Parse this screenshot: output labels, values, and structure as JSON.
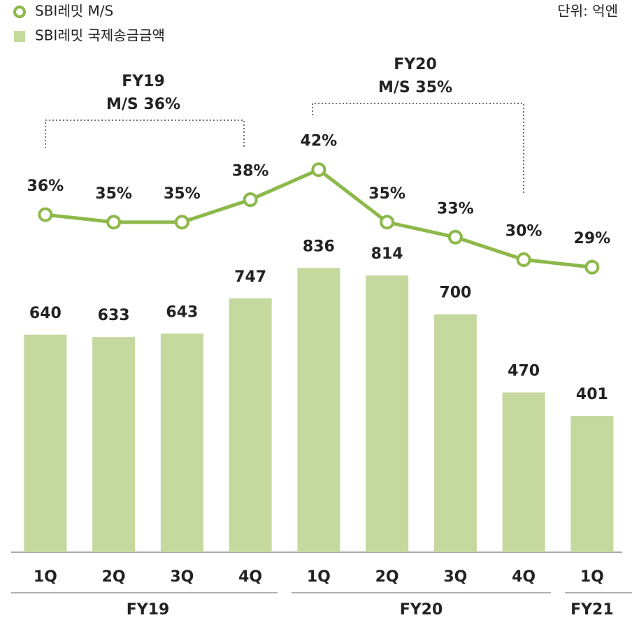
{
  "chart_data": {
    "type": "bar_line",
    "unit_label": "단위: 억엔",
    "groups": [
      {
        "label": "FY19",
        "categories": [
          "1Q",
          "2Q",
          "3Q",
          "4Q"
        ]
      },
      {
        "label": "FY20",
        "categories": [
          "1Q",
          "2Q",
          "3Q",
          "4Q"
        ]
      },
      {
        "label": "FY21",
        "categories": [
          "1Q"
        ]
      }
    ],
    "series": [
      {
        "name": "SBI레밋 국제송금금액",
        "type": "bar",
        "color": "#c5d89d",
        "values": [
          640,
          633,
          643,
          747,
          836,
          814,
          700,
          470,
          401
        ]
      },
      {
        "name": "SBI레밋 M/S",
        "type": "line",
        "axis": "y2",
        "color": "#8db84a",
        "values": [
          36,
          35,
          35,
          38,
          42,
          35,
          33,
          30,
          29
        ],
        "value_labels": [
          "36%",
          "35%",
          "35%",
          "38%",
          "42%",
          "35%",
          "33%",
          "30%",
          "29%"
        ]
      }
    ],
    "ylim": [
      0,
      1600
    ],
    "y2lim": [
      -9,
      63.5
    ],
    "annotations": [
      {
        "title": "FY19",
        "text": "M/S 36%"
      },
      {
        "title": "FY20",
        "text": "M/S 35%"
      }
    ]
  }
}
